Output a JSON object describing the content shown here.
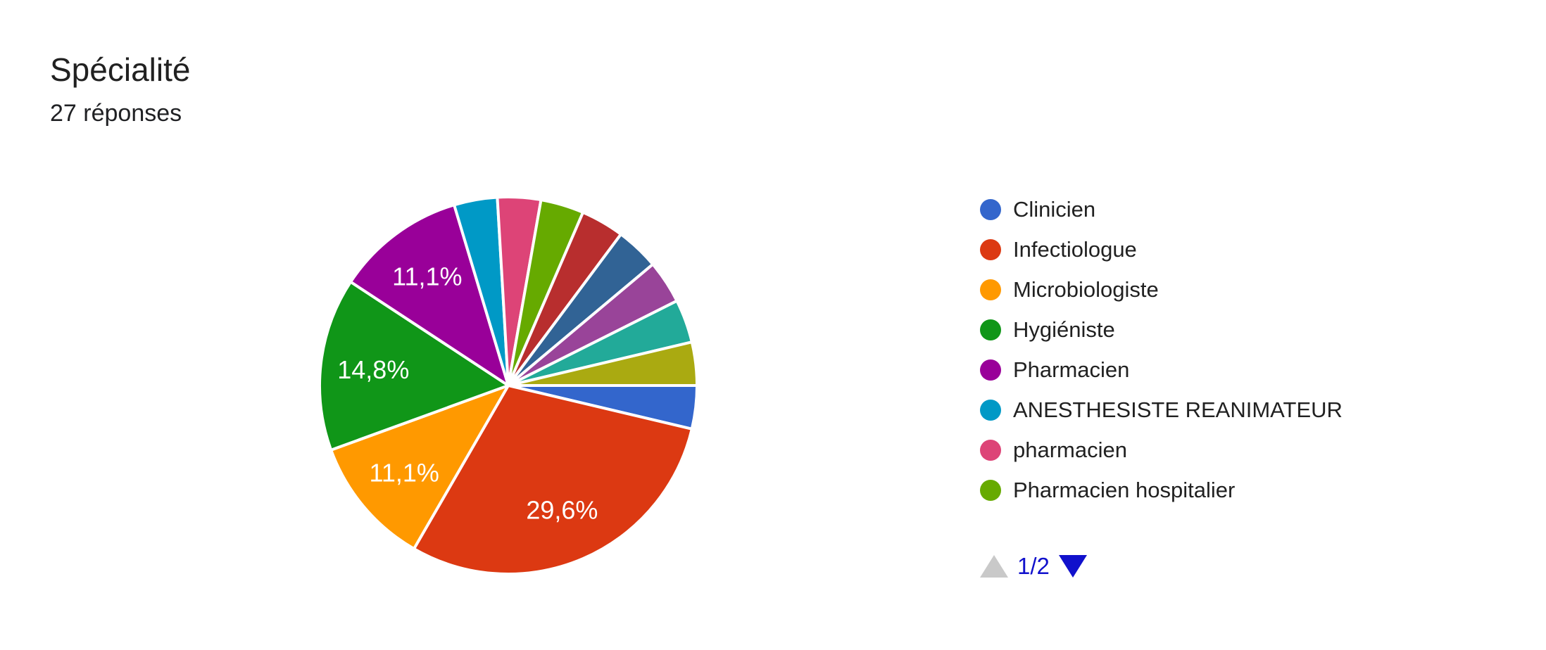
{
  "header": {
    "title": "Spécialité",
    "responses": "27 réponses"
  },
  "chart_data": {
    "type": "pie",
    "title": "Spécialité",
    "total_responses": 27,
    "start_angle_deg": 90,
    "direction": "clockwise",
    "legend_position": "right",
    "legend_visible_count": 8,
    "slices": [
      {
        "label": "Clinicien",
        "color": "#3366cc",
        "value": 1,
        "percent_label": null
      },
      {
        "label": "Infectiologue",
        "color": "#dc3912",
        "value": 8,
        "percent_label": "29,6%"
      },
      {
        "label": "Microbiologiste",
        "color": "#ff9900",
        "value": 3,
        "percent_label": "11,1%"
      },
      {
        "label": "Hygiéniste",
        "color": "#109618",
        "value": 4,
        "percent_label": "14,8%"
      },
      {
        "label": "Pharmacien",
        "color": "#990099",
        "value": 3,
        "percent_label": "11,1%"
      },
      {
        "label": "ANESTHESISTE REANIMATEUR",
        "color": "#0099c6",
        "value": 1,
        "percent_label": null
      },
      {
        "label": "pharmacien",
        "color": "#dd4477",
        "value": 1,
        "percent_label": null
      },
      {
        "label": "Pharmacien hospitalier",
        "color": "#66aa00",
        "value": 1,
        "percent_label": null
      },
      {
        "label": null,
        "color": "#b82e2e",
        "value": 1,
        "percent_label": null
      },
      {
        "label": null,
        "color": "#316395",
        "value": 1,
        "percent_label": null
      },
      {
        "label": null,
        "color": "#994499",
        "value": 1,
        "percent_label": null
      },
      {
        "label": null,
        "color": "#22aa99",
        "value": 1,
        "percent_label": null
      },
      {
        "label": null,
        "color": "#aaaa11",
        "value": 1,
        "percent_label": null
      }
    ]
  },
  "pager": {
    "page_label": "1/2",
    "up_enabled": false,
    "down_enabled": true,
    "active_color": "#1111cc",
    "disabled_color": "#c9c9c9"
  }
}
